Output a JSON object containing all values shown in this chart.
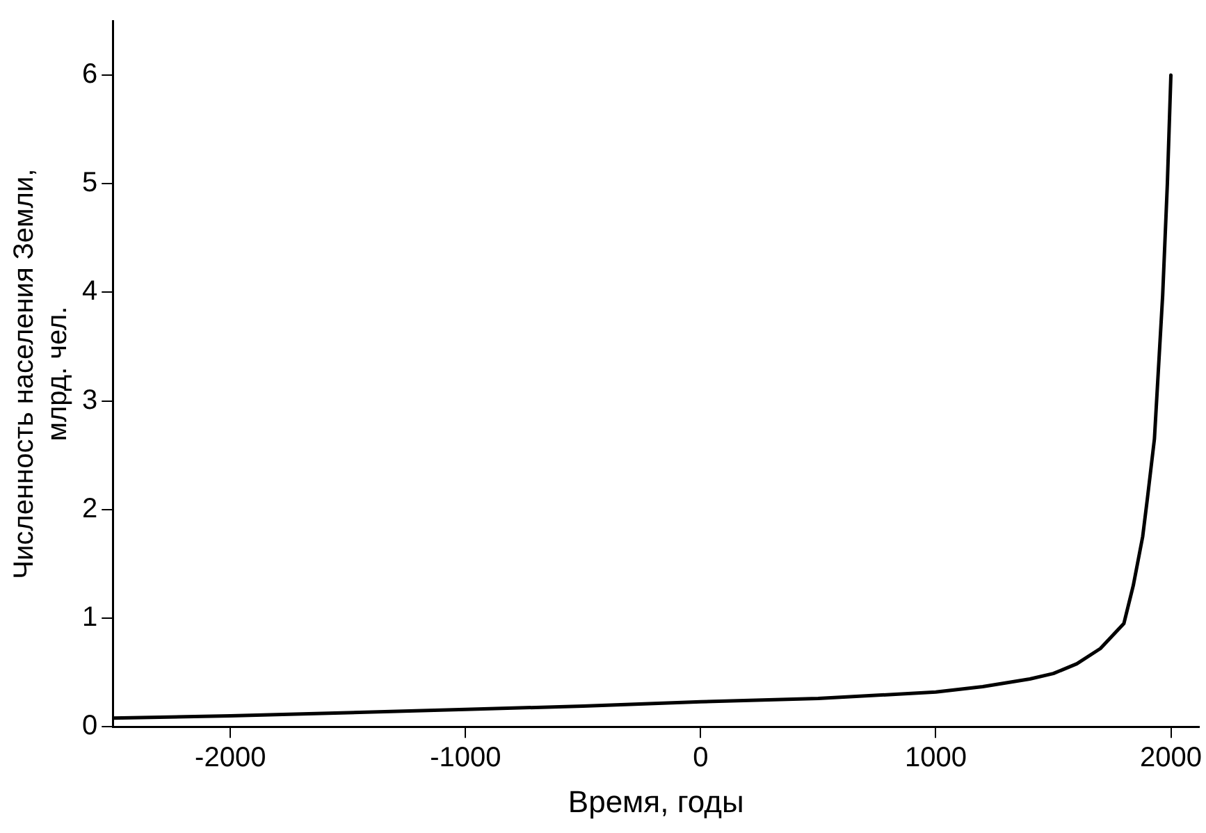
{
  "chart_data": {
    "type": "line",
    "xlabel": "Время, годы",
    "ylabel": "Численность населения Земли, млрд. чел.",
    "x": [
      -2500,
      -2000,
      -1500,
      -1000,
      -500,
      0,
      500,
      1000,
      1200,
      1400,
      1500,
      1600,
      1700,
      1800,
      1840,
      1880,
      1900,
      1930,
      1965,
      1985,
      2000
    ],
    "series": [
      {
        "color": "#000000",
        "values": [
          0.08,
          0.1,
          0.13,
          0.16,
          0.19,
          0.23,
          0.26,
          0.32,
          0.37,
          0.44,
          0.49,
          0.58,
          0.72,
          0.95,
          1.3,
          1.75,
          2.1,
          2.65,
          3.97,
          5.0,
          6.0
        ]
      }
    ],
    "xlim": [
      -2500,
      2120
    ],
    "xticks": [
      -2000,
      -1000,
      0,
      1000,
      2000
    ],
    "ylim": [
      0,
      6.5
    ],
    "yticks": [
      0,
      1,
      2,
      3,
      4,
      5,
      6
    ],
    "grid": false,
    "legend": false,
    "marker": "none",
    "line_style": "solid"
  }
}
